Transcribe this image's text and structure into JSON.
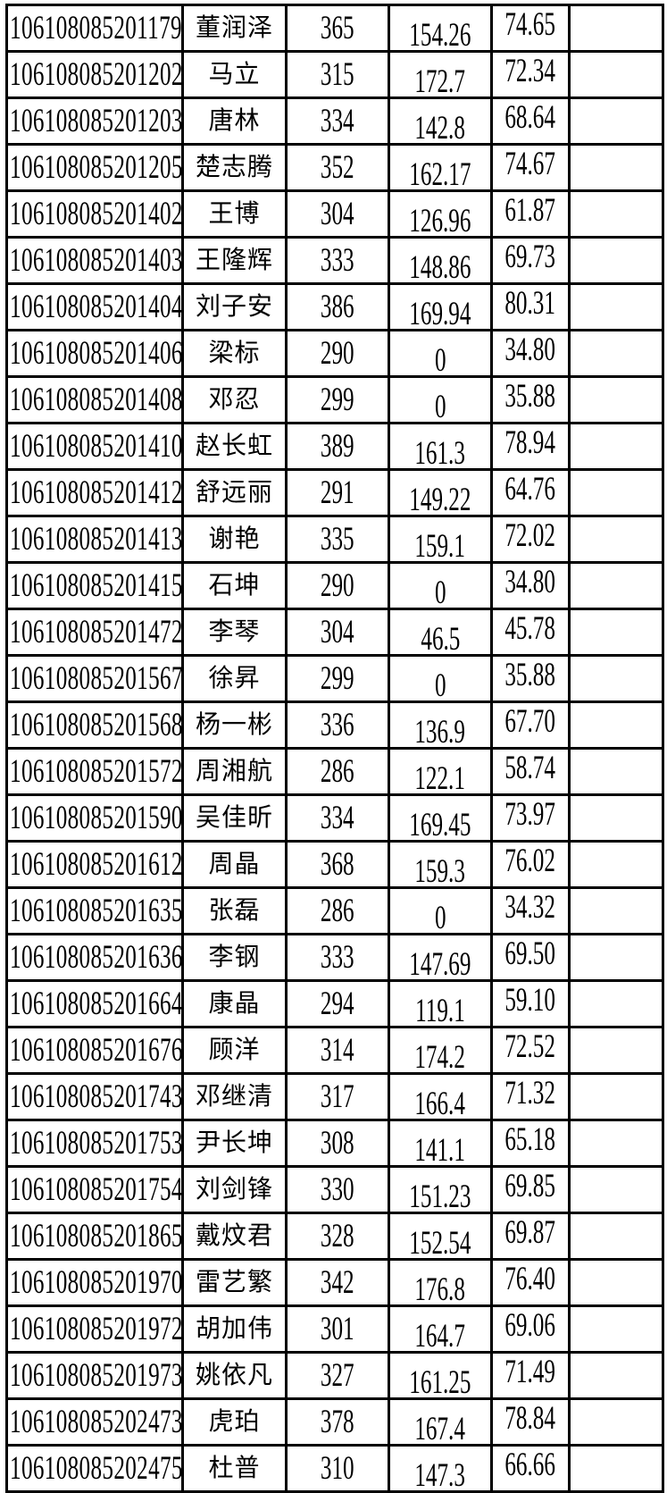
{
  "table": {
    "rows": [
      [
        "106108085201179",
        "董润泽",
        "365",
        "154.26",
        "74.65",
        ""
      ],
      [
        "106108085201202",
        "马立",
        "315",
        "172.7",
        "72.34",
        ""
      ],
      [
        "106108085201203",
        "唐林",
        "334",
        "142.8",
        "68.64",
        ""
      ],
      [
        "106108085201205",
        "楚志腾",
        "352",
        "162.17",
        "74.67",
        ""
      ],
      [
        "106108085201402",
        "王博",
        "304",
        "126.96",
        "61.87",
        ""
      ],
      [
        "106108085201403",
        "王隆辉",
        "333",
        "148.86",
        "69.73",
        ""
      ],
      [
        "106108085201404",
        "刘子安",
        "386",
        "169.94",
        "80.31",
        ""
      ],
      [
        "106108085201406",
        "梁标",
        "290",
        "0",
        "34.80",
        ""
      ],
      [
        "106108085201408",
        "邓忍",
        "299",
        "0",
        "35.88",
        ""
      ],
      [
        "106108085201410",
        "赵长虹",
        "389",
        "161.3",
        "78.94",
        ""
      ],
      [
        "106108085201412",
        "舒远丽",
        "291",
        "149.22",
        "64.76",
        ""
      ],
      [
        "106108085201413",
        "谢艳",
        "335",
        "159.1",
        "72.02",
        ""
      ],
      [
        "106108085201415",
        "石坤",
        "290",
        "0",
        "34.80",
        ""
      ],
      [
        "106108085201472",
        "李琴",
        "304",
        "46.5",
        "45.78",
        ""
      ],
      [
        "106108085201567",
        "徐昇",
        "299",
        "0",
        "35.88",
        ""
      ],
      [
        "106108085201568",
        "杨一彬",
        "336",
        "136.9",
        "67.70",
        ""
      ],
      [
        "106108085201572",
        "周湘航",
        "286",
        "122.1",
        "58.74",
        ""
      ],
      [
        "106108085201590",
        "吴佳昕",
        "334",
        "169.45",
        "73.97",
        ""
      ],
      [
        "106108085201612",
        "周晶",
        "368",
        "159.3",
        "76.02",
        ""
      ],
      [
        "106108085201635",
        "张磊",
        "286",
        "0",
        "34.32",
        ""
      ],
      [
        "106108085201636",
        "李钢",
        "333",
        "147.69",
        "69.50",
        ""
      ],
      [
        "106108085201664",
        "康晶",
        "294",
        "119.1",
        "59.10",
        ""
      ],
      [
        "106108085201676",
        "顾洋",
        "314",
        "174.2",
        "72.52",
        ""
      ],
      [
        "106108085201743",
        "邓继清",
        "317",
        "166.4",
        "71.32",
        ""
      ],
      [
        "106108085201753",
        "尹长坤",
        "308",
        "141.1",
        "65.18",
        ""
      ],
      [
        "106108085201754",
        "刘剑锋",
        "330",
        "151.23",
        "69.85",
        ""
      ],
      [
        "106108085201865",
        "戴炆君",
        "328",
        "152.54",
        "69.87",
        ""
      ],
      [
        "106108085201970",
        "雷艺繁",
        "342",
        "176.8",
        "76.40",
        ""
      ],
      [
        "106108085201972",
        "胡加伟",
        "301",
        "164.7",
        "69.06",
        ""
      ],
      [
        "106108085201973",
        "姚依凡",
        "327",
        "161.25",
        "71.49",
        ""
      ],
      [
        "106108085202473",
        "虎珀",
        "378",
        "167.4",
        "78.84",
        ""
      ],
      [
        "106108085202475",
        "杜普",
        "310",
        "147.3",
        "66.66",
        ""
      ]
    ]
  },
  "colors": {
    "border": "#000000",
    "text": "#000000",
    "background": "#ffffff"
  }
}
